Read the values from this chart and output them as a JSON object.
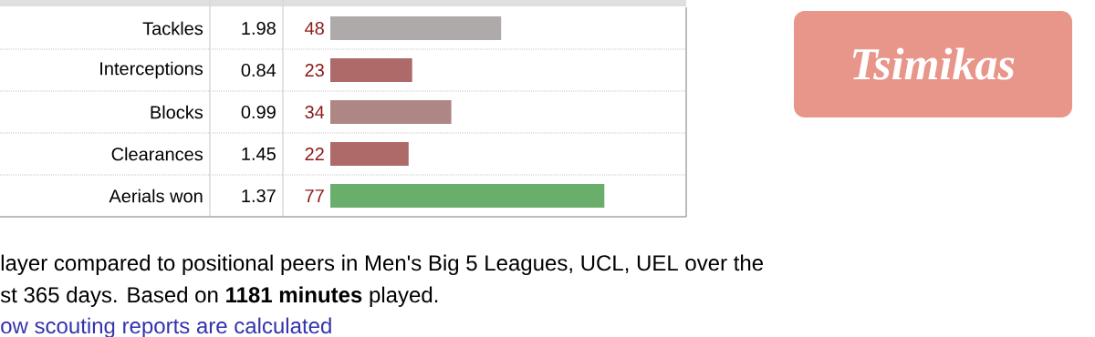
{
  "chart_data": {
    "type": "bar",
    "orientation": "horizontal",
    "title": "Tsimikas",
    "categories": [
      "Tackles",
      "Interceptions",
      "Blocks",
      "Clearances",
      "Aerials won"
    ],
    "values": [
      48,
      23,
      34,
      22,
      77
    ],
    "colors": [
      "#adaaa9",
      "#ae6969",
      "#ae8784",
      "#ae6969",
      "#6aae6b"
    ],
    "xlim": [
      0,
      100
    ],
    "data_labels": true,
    "annotations": [
      "1.98",
      "0.84",
      "0.99",
      "1.45",
      "1.37",
      "layer compared to positional peers in Men's Big 5 Leagues, UCL, UEL over the",
      "st 365 days. Based on **1181 minutes** played.",
      "ow scouting reports are calculated"
    ]
  }
}
